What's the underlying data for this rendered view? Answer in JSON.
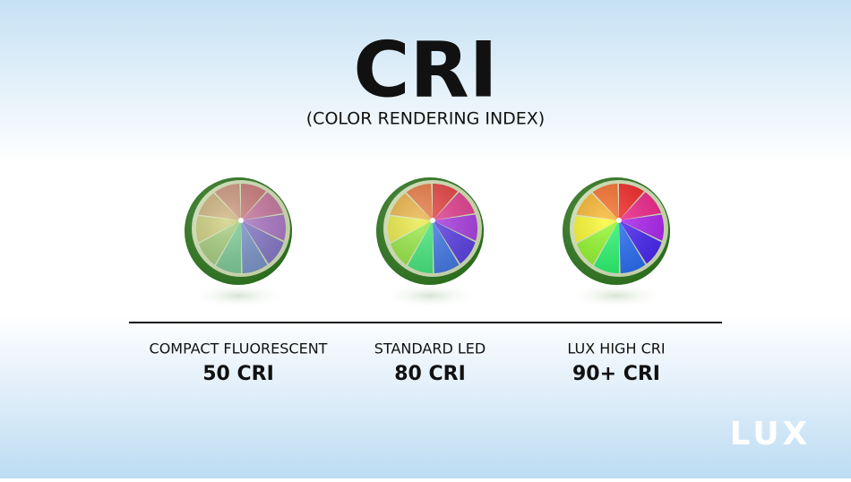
{
  "title": "CRI",
  "subtitle": "(COLOR RENDERING INDEX)",
  "items": [
    {
      "label": "COMPACT FLUORESCENT",
      "value": "50 CRI"
    },
    {
      "label": "STANDARD LED",
      "value": "80 CRI"
    },
    {
      "label": "LUX HIGH CRI",
      "value": "90+ CRI"
    }
  ],
  "logo": "LUX"
}
